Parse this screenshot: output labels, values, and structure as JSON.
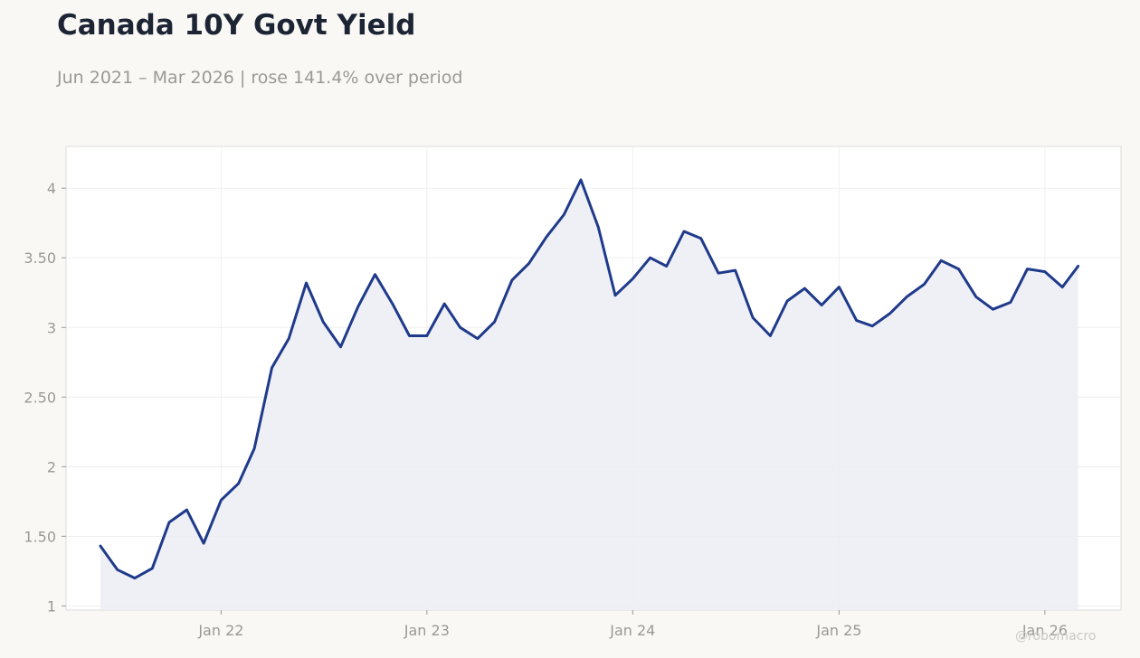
{
  "header": {
    "title": "Canada 10Y Govt Yield",
    "subtitle": "Jun 2021 – Mar 2026 | rose 141.4% over period"
  },
  "watermark": "@robomacro",
  "colors": {
    "line": "#1f3a8a",
    "area_fill": "#eceef5",
    "grid": "#ececec",
    "plot_background": "#ffffff",
    "plot_border": "#dddddd",
    "page_background": "#f9f8f5"
  },
  "chart_data": {
    "type": "area",
    "x_axis": {
      "type": "date",
      "range": [
        "2021-04-01",
        "2026-05-16"
      ],
      "ticks": [
        {
          "date": "2022-01-01",
          "label": "Jan 22"
        },
        {
          "date": "2023-01-01",
          "label": "Jan 23"
        },
        {
          "date": "2024-01-01",
          "label": "Jan 24"
        },
        {
          "date": "2025-01-01",
          "label": "Jan 25"
        },
        {
          "date": "2026-01-01",
          "label": "Jan 26"
        }
      ]
    },
    "y_axis": {
      "range": [
        0.97,
        4.3
      ],
      "ticks": [
        {
          "value": 1,
          "label": "1"
        },
        {
          "value": 1.5,
          "label": "1.50"
        },
        {
          "value": 2,
          "label": "2"
        },
        {
          "value": 2.5,
          "label": "2.50"
        },
        {
          "value": 3,
          "label": "3"
        },
        {
          "value": 3.5,
          "label": "3.50"
        },
        {
          "value": 4,
          "label": "4"
        }
      ]
    },
    "grid": true,
    "series": [
      {
        "x": [
          "2021-06-01",
          "2021-07-01",
          "2021-08-01",
          "2021-09-01",
          "2021-10-01",
          "2021-11-01",
          "2021-12-01",
          "2022-01-01",
          "2022-02-01",
          "2022-03-01",
          "2022-04-01",
          "2022-05-01",
          "2022-06-01",
          "2022-07-01",
          "2022-08-01",
          "2022-09-01",
          "2022-10-01",
          "2022-11-01",
          "2022-12-01",
          "2023-01-01",
          "2023-02-01",
          "2023-03-01",
          "2023-04-01",
          "2023-05-01",
          "2023-06-01",
          "2023-07-01",
          "2023-08-01",
          "2023-09-01",
          "2023-10-01",
          "2023-11-01",
          "2023-12-01",
          "2024-01-01",
          "2024-02-01",
          "2024-03-01",
          "2024-04-01",
          "2024-05-01",
          "2024-06-01",
          "2024-07-01",
          "2024-08-01",
          "2024-09-01",
          "2024-10-01",
          "2024-11-01",
          "2024-12-01",
          "2025-01-01",
          "2025-02-01",
          "2025-03-01",
          "2025-04-01",
          "2025-05-01",
          "2025-06-01",
          "2025-07-01",
          "2025-08-01",
          "2025-09-01",
          "2025-10-01",
          "2025-11-01",
          "2025-12-01",
          "2026-01-01",
          "2026-02-01",
          "2026-03-01"
        ],
        "y": [
          1.43,
          1.26,
          1.2,
          1.27,
          1.6,
          1.69,
          1.45,
          1.76,
          1.88,
          2.13,
          2.71,
          2.92,
          3.32,
          3.04,
          2.86,
          3.15,
          3.38,
          3.17,
          2.94,
          2.94,
          3.17,
          3.0,
          2.92,
          3.04,
          3.34,
          3.46,
          3.65,
          3.81,
          4.06,
          3.72,
          3.23,
          3.35,
          3.5,
          3.44,
          3.69,
          3.64,
          3.39,
          3.41,
          3.07,
          2.94,
          3.19,
          3.28,
          3.16,
          3.29,
          3.05,
          3.01,
          3.1,
          3.22,
          3.31,
          3.48,
          3.42,
          3.22,
          3.13,
          3.18,
          3.42,
          3.4,
          3.29,
          3.44
        ]
      }
    ]
  }
}
